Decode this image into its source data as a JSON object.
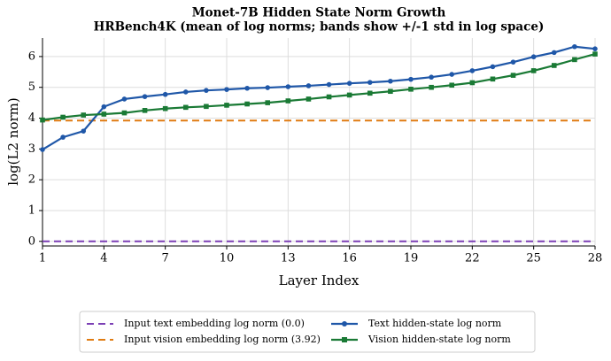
{
  "chart_data": {
    "type": "line",
    "title": "Monet-7B Hidden State Norm Growth",
    "subtitle": "HRBench4K (mean of log norms; bands show +/-1 std in log space)",
    "x_label": "Layer Index",
    "y_label": "log(L2 norm)",
    "x": [
      1,
      2,
      3,
      4,
      5,
      6,
      7,
      8,
      9,
      10,
      11,
      12,
      13,
      14,
      15,
      16,
      17,
      18,
      19,
      20,
      21,
      22,
      23,
      24,
      25,
      26,
      27,
      28
    ],
    "xlim": [
      1,
      28
    ],
    "xticks": [
      1,
      4,
      7,
      10,
      13,
      16,
      19,
      22,
      25,
      28
    ],
    "ylim": [
      -0.15,
      6.6
    ],
    "yticks": [
      0,
      1,
      2,
      3,
      4,
      5,
      6
    ],
    "grid": true,
    "legend": "lower center",
    "hlines": [
      {
        "name": "Input text embedding log norm (0.0)",
        "color": "#7b3fb5",
        "value": 0
      },
      {
        "name": "Input vision embedding log norm (3.92)",
        "color": "#e07b12",
        "value": 3.92
      }
    ],
    "series": [
      {
        "name": "Text hidden-state log norm",
        "color": "#1f57a8",
        "marker": "circle",
        "values": [
          2.98,
          3.38,
          3.58,
          4.37,
          4.62,
          4.7,
          4.77,
          4.85,
          4.9,
          4.93,
          4.97,
          4.99,
          5.02,
          5.05,
          5.09,
          5.13,
          5.16,
          5.2,
          5.26,
          5.33,
          5.42,
          5.54,
          5.67,
          5.82,
          5.99,
          6.13,
          6.32,
          6.25
        ]
      },
      {
        "name": "Vision hidden-state log norm",
        "color": "#1a7a35",
        "marker": "square",
        "values": [
          3.94,
          4.03,
          4.1,
          4.13,
          4.17,
          4.25,
          4.31,
          4.35,
          4.38,
          4.42,
          4.46,
          4.5,
          4.56,
          4.62,
          4.69,
          4.75,
          4.81,
          4.87,
          4.94,
          5.0,
          5.07,
          5.15,
          5.27,
          5.39,
          5.54,
          5.71,
          5.9,
          6.08
        ]
      }
    ]
  }
}
